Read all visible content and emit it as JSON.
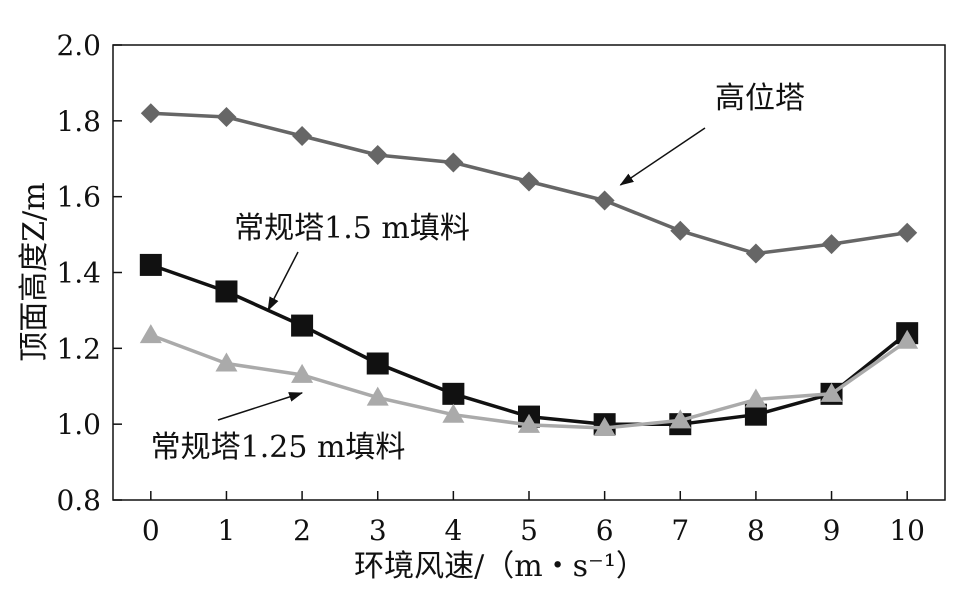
{
  "chart_data": {
    "type": "line",
    "xlabel": "环境风速/（m・s⁻¹）",
    "ylabel": "顶面高度Z/m",
    "xlim": [
      -0.5,
      10.5
    ],
    "ylim": [
      0.8,
      2.0
    ],
    "x_ticks": [
      "0",
      "1",
      "2",
      "3",
      "4",
      "5",
      "6",
      "7",
      "8",
      "9",
      "10"
    ],
    "y_ticks": [
      "0.8",
      "1.0",
      "1.2",
      "1.4",
      "1.6",
      "1.8",
      "2.0"
    ],
    "x": [
      0,
      1,
      2,
      3,
      4,
      5,
      6,
      7,
      8,
      9,
      10
    ],
    "grid": false,
    "series": [
      {
        "name": "高位塔",
        "values": [
          1.82,
          1.81,
          1.76,
          1.71,
          1.69,
          1.64,
          1.59,
          1.51,
          1.45,
          1.475,
          1.505
        ],
        "color": "#666666",
        "marker": "diamond"
      },
      {
        "name": "常规塔1.5 m填料",
        "values": [
          1.42,
          1.35,
          1.26,
          1.16,
          1.08,
          1.02,
          1.0,
          1.0,
          1.025,
          1.08,
          1.24
        ],
        "color": "#111111",
        "marker": "square"
      },
      {
        "name": "常规塔1.25 m填料",
        "values": [
          1.235,
          1.16,
          1.13,
          1.07,
          1.025,
          0.998,
          0.99,
          1.01,
          1.065,
          1.08,
          1.22
        ],
        "color": "#aaaaaa",
        "marker": "triangle"
      }
    ],
    "annotations": [
      {
        "text": "高位塔",
        "series_index": 0
      },
      {
        "text": "常规塔1.5 m填料",
        "series_index": 1
      },
      {
        "text": "常规塔1.25 m填料",
        "series_index": 2
      }
    ]
  }
}
